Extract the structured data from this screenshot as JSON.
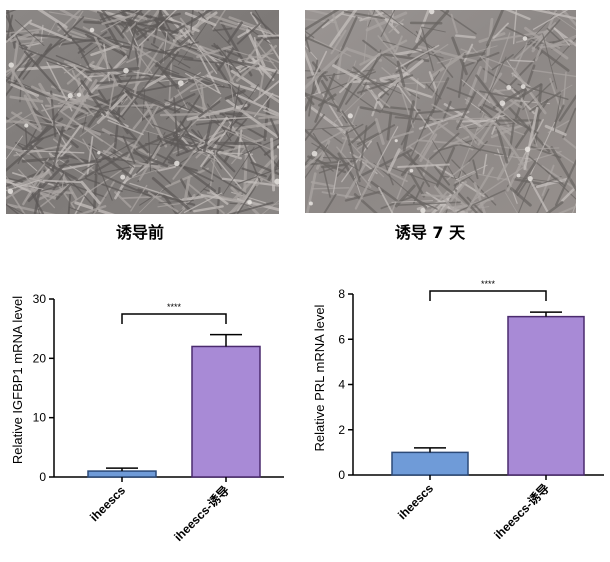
{
  "photos": [
    {
      "caption": "诱导前"
    },
    {
      "caption": "诱导 7 天"
    }
  ],
  "chart_data": [
    {
      "type": "bar",
      "ylabel": "Relative IGFBP1 mRNA level",
      "xlabel": "",
      "categories": [
        "iheescs",
        "iheescs-诱导"
      ],
      "values": [
        1.0,
        22.0
      ],
      "errors": [
        0.5,
        2.0
      ],
      "ylim": [
        0,
        30
      ],
      "yticks": [
        "0",
        "10",
        "20",
        "30"
      ],
      "significance": "****",
      "bar_colors": [
        "#6f9bd8",
        "#a88ad6"
      ],
      "grid": false,
      "legend": "none"
    },
    {
      "type": "bar",
      "ylabel": "Relative PRL mRNA level",
      "xlabel": "",
      "categories": [
        "iheescs",
        "iheescs-诱导"
      ],
      "values": [
        1.0,
        7.0
      ],
      "errors": [
        0.2,
        0.2
      ],
      "ylim": [
        0,
        8
      ],
      "yticks": [
        "0",
        "2",
        "4",
        "6",
        "8"
      ],
      "significance": "****",
      "bar_colors": [
        "#6f9bd8",
        "#a88ad6"
      ],
      "grid": false,
      "legend": "none"
    }
  ]
}
